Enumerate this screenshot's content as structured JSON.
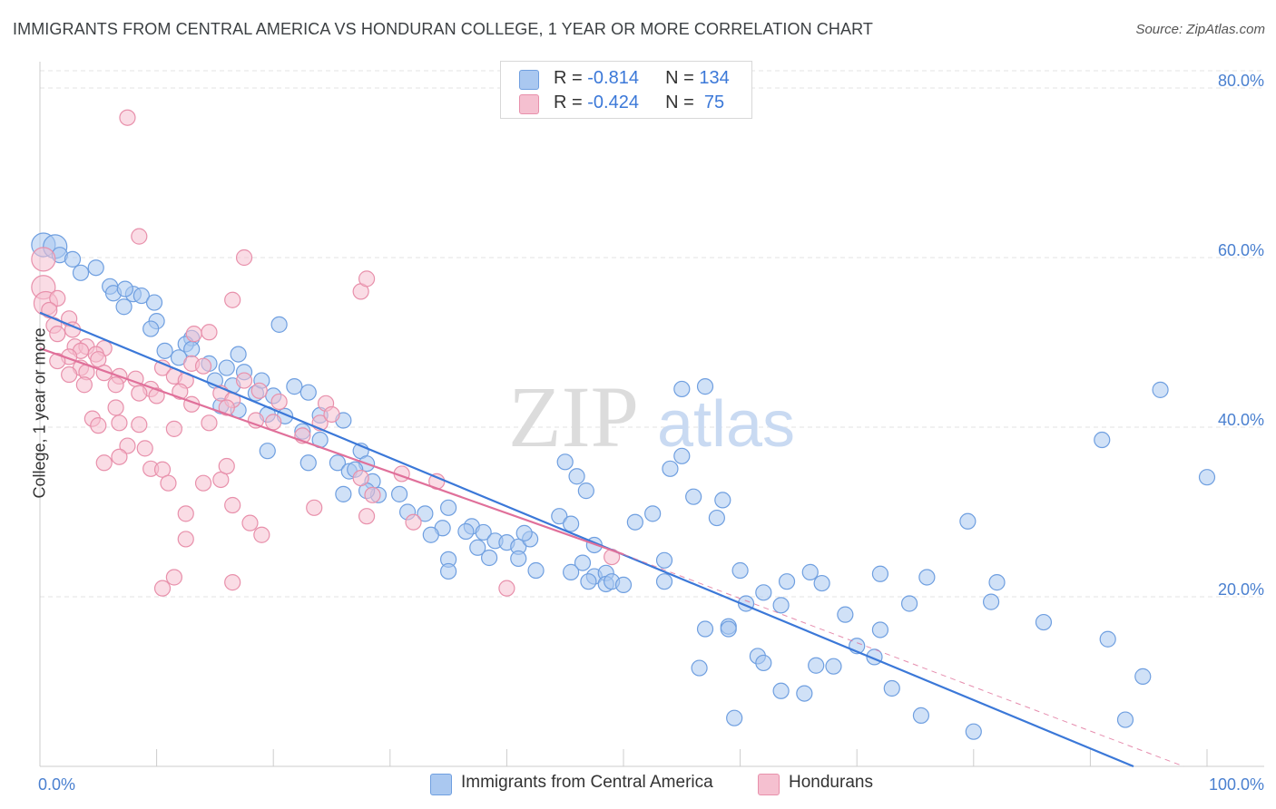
{
  "header": {
    "title": "IMMIGRANTS FROM CENTRAL AMERICA VS HONDURAN COLLEGE, 1 YEAR OR MORE CORRELATION CHART",
    "source": "Source: ZipAtlas.com"
  },
  "legend": {
    "rows": [
      {
        "r_label": "R = ",
        "r_value": "-0.814",
        "n_label": "N = ",
        "n_value": "134"
      },
      {
        "r_label": "R = ",
        "r_value": "-0.424",
        "n_label": "N = ",
        "n_value": " 75"
      }
    ]
  },
  "bottom_legend": {
    "series1": "Immigrants from Central America",
    "series2": "Hondurans"
  },
  "watermark": {
    "zip": "ZIP",
    "atlas": "atlas"
  },
  "colors": {
    "blue_fill": "#aac8f0",
    "blue_stroke": "#6f9fe0",
    "blue_line": "#3b78d8",
    "pink_fill": "#f5c0d0",
    "pink_stroke": "#e890ab",
    "pink_line": "#e0709a",
    "axis_text": "#4a80d0",
    "grid": "#e3e3e3"
  },
  "chart_data": {
    "type": "scatter",
    "xlabel": "",
    "ylabel": "College, 1 year or more",
    "xlim": [
      0,
      100
    ],
    "ylim": [
      0,
      80
    ],
    "x_ticks": [
      "0.0%",
      "100.0%"
    ],
    "y_ticks": [
      {
        "value": 20,
        "label": "20.0%"
      },
      {
        "value": 40,
        "label": "40.0%"
      },
      {
        "value": 60,
        "label": "60.0%"
      },
      {
        "value": 80,
        "label": "80.0%"
      }
    ],
    "grid": true,
    "legend_position": "top-center",
    "series": [
      {
        "name": "Immigrants from Central America",
        "color": "blue",
        "trend": {
          "x0": 0,
          "y0": 53.5,
          "x1": 93.7,
          "y1": 0
        },
        "points": [
          [
            0.3,
            61.5
          ],
          [
            1.3,
            61.3
          ],
          [
            1.7,
            60.3
          ],
          [
            2.8,
            59.8
          ],
          [
            4.8,
            58.8
          ],
          [
            3.5,
            58.2
          ],
          [
            6.0,
            56.6
          ],
          [
            6.3,
            55.8
          ],
          [
            8.0,
            55.7
          ],
          [
            8.7,
            55.5
          ],
          [
            7.3,
            56.3
          ],
          [
            9.8,
            54.7
          ],
          [
            7.2,
            54.2
          ],
          [
            10.0,
            52.5
          ],
          [
            9.5,
            51.6
          ],
          [
            13.0,
            50.5
          ],
          [
            12.5,
            49.8
          ],
          [
            10.7,
            49.0
          ],
          [
            13.0,
            49.2
          ],
          [
            11.9,
            48.2
          ],
          [
            17.0,
            48.6
          ],
          [
            14.5,
            47.5
          ],
          [
            16.0,
            47.0
          ],
          [
            17.5,
            46.5
          ],
          [
            15.0,
            45.5
          ],
          [
            16.5,
            44.9
          ],
          [
            18.5,
            44.0
          ],
          [
            20.0,
            43.7
          ],
          [
            21.8,
            44.8
          ],
          [
            23.0,
            44.1
          ],
          [
            15.5,
            42.5
          ],
          [
            17.0,
            42.0
          ],
          [
            19.5,
            41.5
          ],
          [
            21.0,
            41.3
          ],
          [
            24.0,
            41.4
          ],
          [
            20.5,
            52.1
          ],
          [
            19.0,
            45.5
          ],
          [
            22.5,
            39.5
          ],
          [
            26.0,
            40.8
          ],
          [
            27.5,
            37.2
          ],
          [
            19.5,
            37.2
          ],
          [
            24.0,
            38.5
          ],
          [
            23.0,
            35.8
          ],
          [
            25.5,
            35.8
          ],
          [
            26.5,
            34.8
          ],
          [
            28.0,
            35.7
          ],
          [
            27.0,
            35.0
          ],
          [
            28.5,
            33.6
          ],
          [
            29.0,
            32.0
          ],
          [
            26.0,
            32.1
          ],
          [
            28.0,
            32.5
          ],
          [
            30.8,
            32.1
          ],
          [
            31.5,
            30.0
          ],
          [
            33.0,
            29.8
          ],
          [
            35.0,
            30.5
          ],
          [
            34.5,
            28.1
          ],
          [
            37.0,
            28.3
          ],
          [
            36.5,
            27.7
          ],
          [
            38.0,
            27.6
          ],
          [
            39.0,
            26.6
          ],
          [
            37.5,
            25.8
          ],
          [
            40.0,
            26.4
          ],
          [
            41.0,
            25.9
          ],
          [
            42.0,
            26.8
          ],
          [
            41.5,
            27.5
          ],
          [
            35.0,
            24.4
          ],
          [
            33.5,
            27.3
          ],
          [
            35.0,
            23.0
          ],
          [
            38.5,
            24.6
          ],
          [
            42.5,
            23.1
          ],
          [
            41.0,
            24.5
          ],
          [
            44.5,
            29.5
          ],
          [
            45.5,
            28.6
          ],
          [
            45.0,
            35.9
          ],
          [
            46.0,
            34.2
          ],
          [
            46.8,
            32.5
          ],
          [
            47.5,
            26.1
          ],
          [
            46.5,
            24.0
          ],
          [
            45.5,
            22.9
          ],
          [
            47.5,
            22.4
          ],
          [
            48.5,
            22.8
          ],
          [
            47.0,
            21.8
          ],
          [
            48.5,
            21.5
          ],
          [
            51.0,
            28.8
          ],
          [
            49.0,
            21.8
          ],
          [
            50.0,
            21.4
          ],
          [
            52.5,
            29.8
          ],
          [
            53.5,
            21.8
          ],
          [
            55.0,
            44.5
          ],
          [
            57.0,
            44.8
          ],
          [
            55.0,
            36.6
          ],
          [
            54.0,
            35.1
          ],
          [
            56.0,
            31.8
          ],
          [
            58.0,
            29.3
          ],
          [
            58.5,
            31.4
          ],
          [
            60.0,
            23.1
          ],
          [
            62.0,
            20.5
          ],
          [
            60.5,
            19.2
          ],
          [
            63.5,
            19.0
          ],
          [
            66.0,
            22.9
          ],
          [
            64.0,
            21.8
          ],
          [
            67.0,
            21.6
          ],
          [
            69.0,
            17.9
          ],
          [
            72.0,
            22.7
          ],
          [
            74.5,
            19.2
          ],
          [
            76.0,
            22.3
          ],
          [
            79.5,
            28.9
          ],
          [
            82.0,
            21.7
          ],
          [
            81.5,
            19.4
          ],
          [
            70.0,
            14.2
          ],
          [
            71.5,
            12.9
          ],
          [
            59.0,
            16.5
          ],
          [
            57.0,
            16.2
          ],
          [
            61.5,
            13.0
          ],
          [
            65.5,
            8.6
          ],
          [
            63.5,
            8.9
          ],
          [
            62.0,
            12.2
          ],
          [
            66.5,
            11.9
          ],
          [
            68.0,
            11.8
          ],
          [
            56.5,
            11.6
          ],
          [
            59.5,
            5.7
          ],
          [
            59.0,
            16.2
          ],
          [
            73.0,
            9.2
          ],
          [
            75.5,
            6.0
          ],
          [
            80.0,
            4.1
          ],
          [
            72.0,
            16.1
          ],
          [
            86.0,
            17.0
          ],
          [
            91.5,
            15.0
          ],
          [
            93.0,
            5.5
          ],
          [
            94.5,
            10.6
          ],
          [
            96.0,
            44.4
          ],
          [
            100.0,
            34.1
          ],
          [
            91.0,
            38.5
          ],
          [
            53.5,
            24.3
          ]
        ]
      },
      {
        "name": "Hondurans",
        "color": "pink",
        "trend": {
          "x0": 0,
          "y0": 49.3,
          "x1": 50.0,
          "y1": 25.0,
          "dash_x1": 98.0,
          "dash_y1": 0
        },
        "points": [
          [
            0.3,
            59.8
          ],
          [
            0.3,
            56.5
          ],
          [
            0.5,
            54.6
          ],
          [
            1.5,
            55.2
          ],
          [
            0.8,
            53.8
          ],
          [
            1.2,
            52.0
          ],
          [
            2.5,
            52.8
          ],
          [
            2.8,
            51.5
          ],
          [
            1.5,
            51.0
          ],
          [
            3.0,
            49.5
          ],
          [
            4.0,
            49.5
          ],
          [
            5.5,
            49.3
          ],
          [
            3.5,
            49.0
          ],
          [
            2.5,
            48.3
          ],
          [
            4.8,
            48.6
          ],
          [
            5.0,
            48.0
          ],
          [
            1.5,
            47.8
          ],
          [
            3.5,
            47.0
          ],
          [
            4.0,
            46.5
          ],
          [
            5.5,
            46.4
          ],
          [
            6.8,
            46.0
          ],
          [
            8.2,
            45.7
          ],
          [
            2.5,
            46.2
          ],
          [
            3.8,
            45.0
          ],
          [
            6.5,
            45.0
          ],
          [
            10.5,
            47.0
          ],
          [
            11.5,
            46.0
          ],
          [
            12.5,
            45.5
          ],
          [
            13.0,
            47.5
          ],
          [
            14.0,
            47.2
          ],
          [
            13.2,
            51.0
          ],
          [
            14.5,
            51.2
          ],
          [
            9.5,
            44.5
          ],
          [
            8.5,
            44.0
          ],
          [
            10.0,
            43.7
          ],
          [
            12.0,
            44.2
          ],
          [
            15.5,
            44.0
          ],
          [
            16.5,
            43.2
          ],
          [
            17.5,
            45.5
          ],
          [
            18.8,
            44.3
          ],
          [
            6.5,
            42.3
          ],
          [
            4.5,
            41.0
          ],
          [
            5.0,
            40.2
          ],
          [
            6.8,
            40.5
          ],
          [
            8.5,
            40.3
          ],
          [
            11.5,
            39.8
          ],
          [
            14.5,
            40.5
          ],
          [
            13.0,
            42.7
          ],
          [
            16.0,
            42.3
          ],
          [
            18.5,
            40.8
          ],
          [
            20.0,
            40.6
          ],
          [
            24.0,
            40.5
          ],
          [
            22.5,
            39.0
          ],
          [
            24.5,
            42.8
          ],
          [
            7.5,
            37.8
          ],
          [
            9.0,
            37.5
          ],
          [
            6.8,
            36.5
          ],
          [
            5.5,
            35.8
          ],
          [
            9.5,
            35.1
          ],
          [
            10.5,
            35.0
          ],
          [
            11.0,
            33.4
          ],
          [
            14.0,
            33.4
          ],
          [
            15.5,
            33.8
          ],
          [
            16.0,
            35.4
          ],
          [
            16.5,
            30.8
          ],
          [
            12.5,
            29.8
          ],
          [
            18.0,
            28.7
          ],
          [
            19.0,
            27.3
          ],
          [
            23.5,
            30.5
          ],
          [
            28.5,
            32.0
          ],
          [
            28.0,
            29.5
          ],
          [
            32.0,
            28.8
          ],
          [
            27.5,
            34.0
          ],
          [
            31.0,
            34.5
          ],
          [
            34.0,
            33.6
          ],
          [
            25.0,
            41.5
          ],
          [
            20.5,
            43.0
          ],
          [
            12.5,
            26.8
          ],
          [
            11.5,
            22.3
          ],
          [
            10.5,
            21.0
          ],
          [
            16.5,
            21.7
          ],
          [
            40.0,
            21.0
          ],
          [
            49.0,
            24.7
          ],
          [
            7.5,
            76.5
          ],
          [
            8.5,
            62.5
          ],
          [
            17.5,
            60.0
          ],
          [
            16.5,
            55.0
          ],
          [
            27.5,
            56.0
          ],
          [
            28.0,
            57.5
          ]
        ]
      }
    ]
  }
}
